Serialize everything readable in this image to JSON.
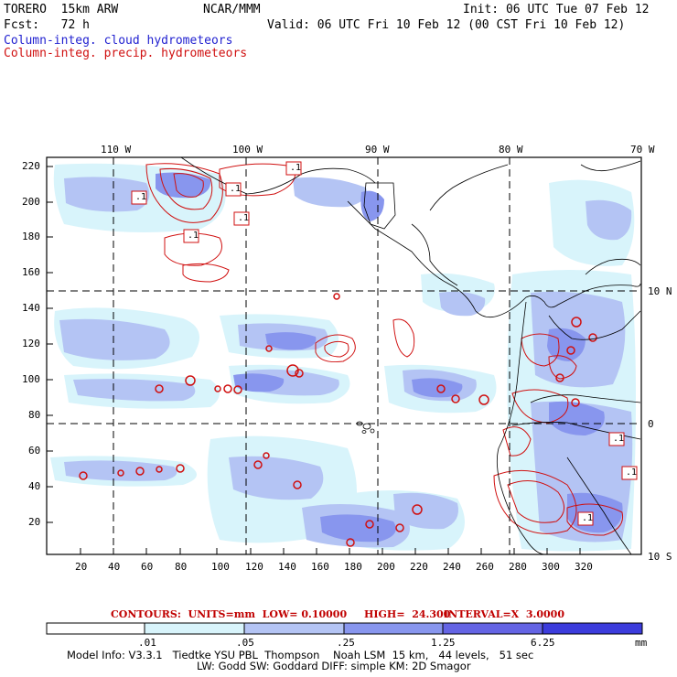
{
  "header": {
    "model": "TORERO  15km ARW",
    "center": "NCAR/MMM",
    "init": "Init: 06 UTC Tue 07 Feb 12",
    "fcst": "Fcst:   72 h",
    "valid": "Valid: 06 UTC Fri 10 Feb 12 (00 CST Fri 10 Feb 12)",
    "field1": "Column-integ. cloud hydrometeors",
    "field2": "Column-integ. precip. hydrometeors"
  },
  "map": {
    "top_lon_labels": [
      "110 W",
      "100 W",
      "90 W",
      "80 W",
      "70 W"
    ],
    "right_lat_labels": [
      "10 N",
      "0",
      "10 S"
    ],
    "left_y_ticks": [
      "220",
      "200",
      "180",
      "160",
      "140",
      "120",
      "100",
      "80",
      "60",
      "40",
      "20"
    ],
    "bottom_x_ticks": [
      "20",
      "40",
      "60",
      "80",
      "100",
      "120",
      "140",
      "160",
      "180",
      "200",
      "220",
      "240",
      "260",
      "280",
      "300",
      "320"
    ],
    "box_labels": [
      ".1",
      ".1",
      ".1",
      ".1",
      ".1",
      ".1",
      ".1",
      ".1",
      ".1"
    ],
    "colors": {
      "light_cyan": "#d8f4fb",
      "light_blue": "#b4c4f4",
      "mid_blue": "#8896ee",
      "blue": "#6464e4",
      "deep_blue": "#3c3cdc",
      "contour": "#d01010"
    }
  },
  "contours_line": {
    "prefix": "CONTOURS:  UNITS=mm  LOW= 0.10000",
    "high": "HIGH=  24.300",
    "interval": "INTERVAL=X  3.0000"
  },
  "colorbar": {
    "labels": [
      ".01",
      ".05",
      ".25",
      "1.25",
      "6.25"
    ],
    "units": "mm",
    "colors": [
      "#ffffff",
      "#d8f4fb",
      "#b4c4f4",
      "#8896ee",
      "#6464e4",
      "#3c3cdc"
    ]
  },
  "model_info": {
    "line1": "Model Info: V3.3.1   Tiedtke YSU PBL  Thompson    Noah LSM  15 km,   44 levels,   51 sec",
    "line2": "LW: Godd SW: Goddard DIFF: simple KM: 2D Smagor"
  }
}
